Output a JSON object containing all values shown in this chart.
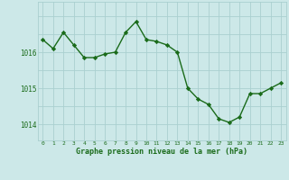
{
  "x": [
    0,
    1,
    2,
    3,
    4,
    5,
    6,
    7,
    8,
    9,
    10,
    11,
    12,
    13,
    14,
    15,
    16,
    17,
    18,
    19,
    20,
    21,
    22,
    23
  ],
  "y": [
    1016.35,
    1016.1,
    1016.55,
    1016.2,
    1015.85,
    1015.85,
    1015.95,
    1016.0,
    1016.55,
    1016.85,
    1016.35,
    1016.3,
    1016.2,
    1016.0,
    1015.0,
    1014.7,
    1014.55,
    1014.15,
    1014.05,
    1014.2,
    1014.85,
    1014.85,
    1015.0,
    1015.15
  ],
  "line_color": "#1a6b1a",
  "marker": "D",
  "marker_size": 2.2,
  "bg_color": "#cce8e8",
  "grid_color": "#aacfcf",
  "text_color": "#1a6b1a",
  "xlabel": "Graphe pression niveau de la mer (hPa)",
  "yticks": [
    1014,
    1015,
    1016
  ],
  "ylim": [
    1013.55,
    1017.4
  ],
  "xlim": [
    -0.5,
    23.5
  ],
  "title": ""
}
